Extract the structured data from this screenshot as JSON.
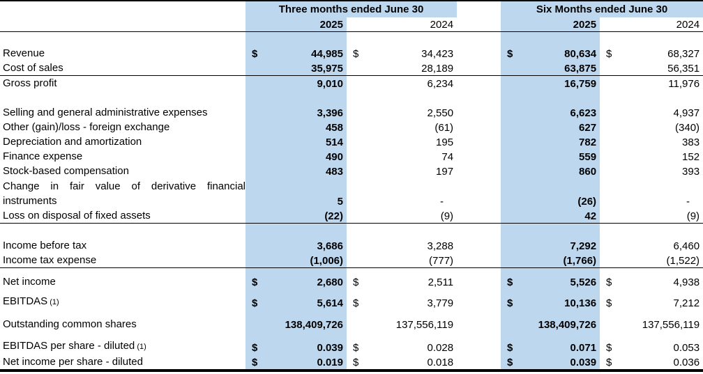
{
  "currency_symbol": "$",
  "colors": {
    "highlight": "#BDD7EE",
    "rule": "#000000"
  },
  "header": {
    "group1": "Three months ended June 30",
    "group2": "Six Months ended June 30",
    "g1y1": "2025",
    "g1y2": "2024",
    "g2y1": "2025",
    "g2y2": "2024"
  },
  "rows": [
    {
      "blank": true
    },
    {
      "label": "Revenue",
      "dollar": true,
      "values": [
        "44,985",
        "34,423",
        "80,634",
        "68,327"
      ]
    },
    {
      "label": "Cost of sales",
      "values": [
        "35,975",
        "28,189",
        "63,875",
        "56,351"
      ],
      "rule": true
    },
    {
      "label": "Gross profit",
      "values": [
        "9,010",
        "6,234",
        "16,759",
        "11,976"
      ]
    },
    {
      "blank": true
    },
    {
      "label": "Selling and general administrative expenses",
      "values": [
        "3,396",
        "2,550",
        "6,623",
        "4,937"
      ]
    },
    {
      "label": "Other (gain)/loss - foreign exchange",
      "values": [
        "458",
        "(61)",
        "627",
        "(340)"
      ]
    },
    {
      "label": "Depreciation and amortization",
      "values": [
        "514",
        "195",
        "782",
        "383"
      ]
    },
    {
      "label": "Finance expense",
      "values": [
        "490",
        "74",
        "559",
        "152"
      ]
    },
    {
      "label": "Stock-based compensation",
      "values": [
        "483",
        "197",
        "860",
        "393"
      ]
    },
    {
      "label": "Change in fair value of derivative financial instruments",
      "justify": true,
      "h": 43,
      "values": [
        "5",
        "-",
        "(26)",
        "-"
      ]
    },
    {
      "label": "Loss on disposal of fixed assets",
      "values": [
        "(22)",
        "(9)",
        "42",
        "(9)"
      ],
      "rule": true
    },
    {
      "blank": true
    },
    {
      "label": "Income before tax",
      "values": [
        "3,686",
        "3,288",
        "7,292",
        "6,460"
      ]
    },
    {
      "label": "Income tax expense",
      "values": [
        "(1,006)",
        "(777)",
        "(1,766)",
        "(1,522)"
      ],
      "rule": true
    },
    {
      "blank": true,
      "h": 10
    },
    {
      "label": "Net income",
      "dollar": true,
      "values": [
        "2,680",
        "2,511",
        "5,526",
        "4,938"
      ]
    },
    {
      "blank": true,
      "h": 7
    },
    {
      "label": "EBITDAS",
      "note": "(1)",
      "dollar": true,
      "values": [
        "5,614",
        "3,779",
        "10,136",
        "7,212"
      ]
    },
    {
      "blank": true,
      "h": 10
    },
    {
      "label": "Outstanding common shares",
      "values": [
        "138,409,726",
        "137,556,119",
        "138,409,726",
        "137,556,119"
      ]
    },
    {
      "blank": true,
      "h": 10
    },
    {
      "label": "EBITDAS per share - diluted",
      "note": "(1)",
      "dollar": true,
      "values": [
        "0.039",
        "0.028",
        "0.071",
        "0.053"
      ]
    },
    {
      "label": "Net income per share - diluted",
      "dollar": true,
      "values": [
        "0.019",
        "0.018",
        "0.039",
        "0.036"
      ],
      "thick": true
    }
  ]
}
